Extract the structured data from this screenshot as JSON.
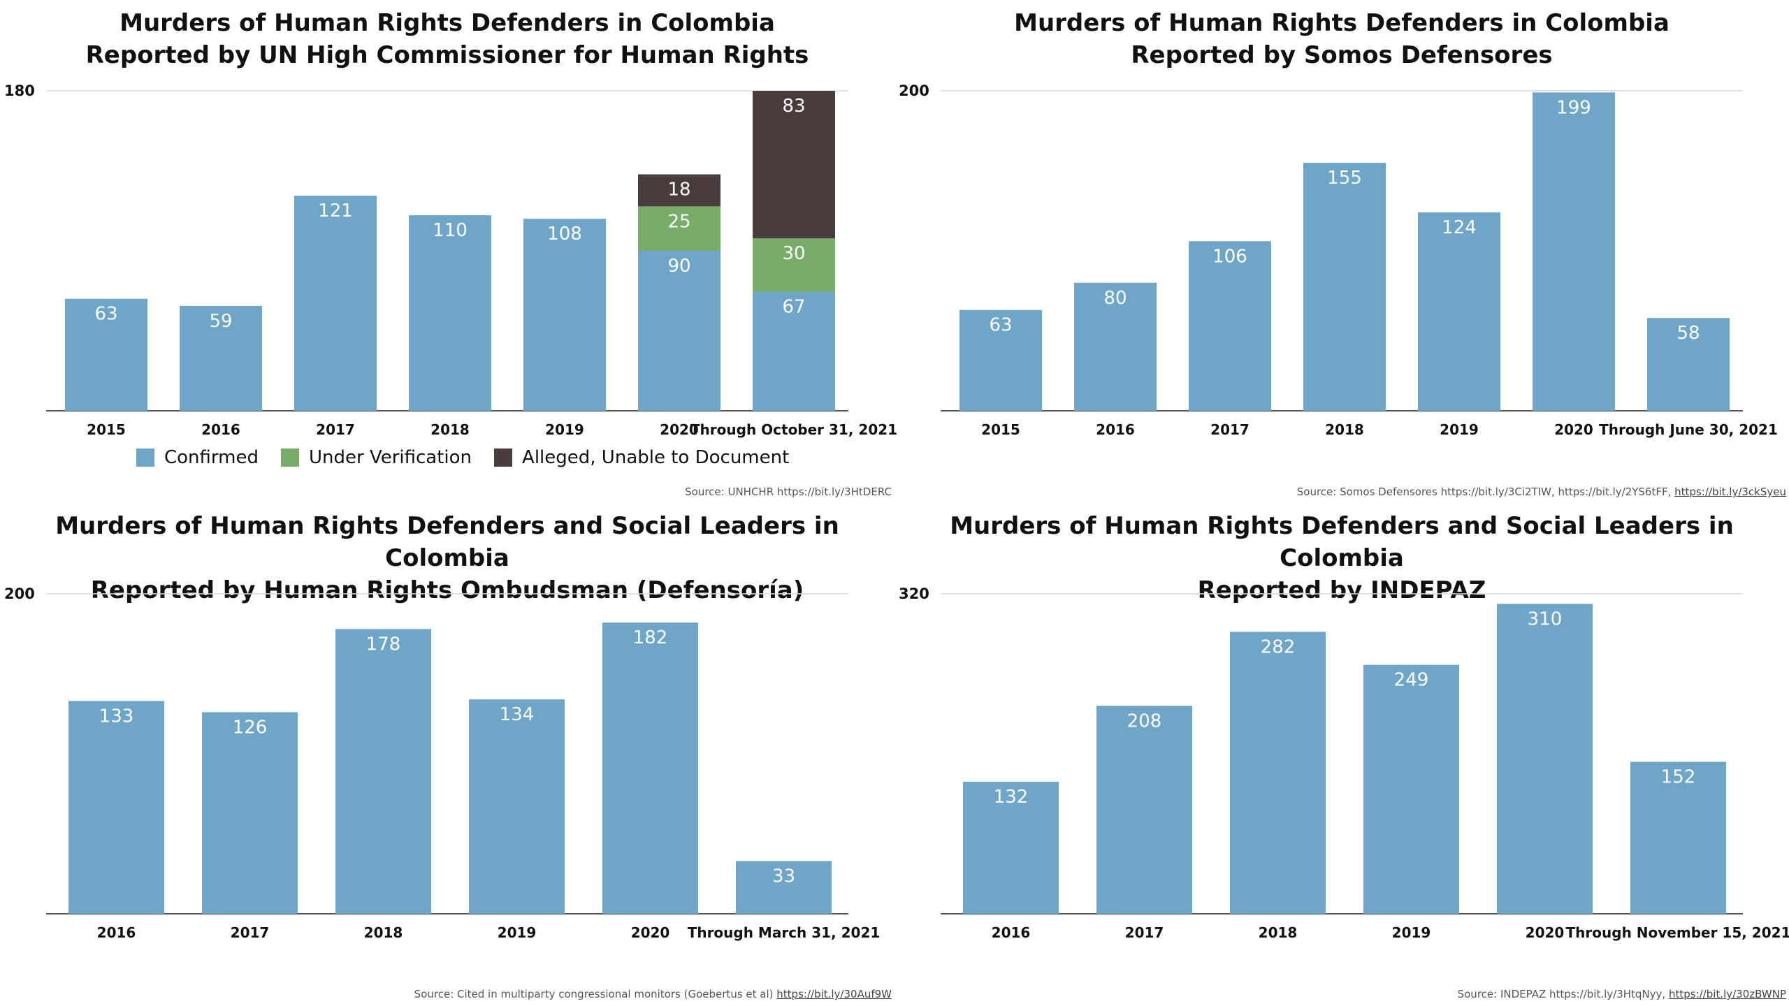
{
  "colors": {
    "confirmed": "#6fa6c7",
    "under_verification": "#77ad68",
    "alleged": "#483c3c",
    "gridline": "#d9d9d9",
    "axis": "#555555"
  },
  "chart_data": [
    {
      "type": "bar",
      "stacked": true,
      "title_line1": "Murders of Human Rights Defenders in Colombia",
      "title_line2": "Reported by UN High Commissioner for Human Rights",
      "categories": [
        "2015",
        "2016",
        "2017",
        "2018",
        "2019",
        "2020",
        "Through October 31, 2021"
      ],
      "series": [
        {
          "name": "Confirmed",
          "color": "#6fa6c7",
          "values": [
            63,
            59,
            121,
            110,
            108,
            90,
            67
          ]
        },
        {
          "name": "Under Verification",
          "color": "#77ad68",
          "values": [
            0,
            0,
            0,
            0,
            0,
            25,
            30
          ]
        },
        {
          "name": "Alleged, Unable to Document",
          "color": "#483c3c",
          "values": [
            0,
            0,
            0,
            0,
            0,
            18,
            83
          ]
        }
      ],
      "ylim": [
        0,
        180
      ],
      "y_tick_label": "180",
      "legend_placement": "bottom",
      "source_text": "Source: UNHCHR https://bit.ly/3HtDERC"
    },
    {
      "type": "bar",
      "title_line1": "Murders of Human Rights Defenders in Colombia",
      "title_line2": "Reported by Somos Defensores",
      "categories": [
        "2015",
        "2016",
        "2017",
        "2018",
        "2019",
        "2020",
        "Through June 30, 2021"
      ],
      "values": [
        63,
        80,
        106,
        155,
        124,
        199,
        58
      ],
      "ylim": [
        0,
        200
      ],
      "y_tick_label": "200",
      "source_text": "Source: Somos Defensores https://bit.ly/3Ci2TIW, https://bit.ly/2YS6tFF,",
      "source_link": "https://bit.ly/3ckSyeu"
    },
    {
      "type": "bar",
      "title_line1": "Murders of Human Rights Defenders and Social Leaders in Colombia",
      "title_line2": "Reported by Human Rights Ombudsman (Defensoría)",
      "categories": [
        "2016",
        "2017",
        "2018",
        "2019",
        "2020",
        "Through March 31, 2021"
      ],
      "values": [
        133,
        126,
        178,
        134,
        182,
        33
      ],
      "ylim": [
        0,
        200
      ],
      "y_tick_label": "200",
      "source_text": "Source: Cited in multiparty congressional monitors (Goebertus et al)",
      "source_link": "https://bit.ly/30Auf9W"
    },
    {
      "type": "bar",
      "title_line1": "Murders of Human Rights Defenders and Social Leaders in Colombia",
      "title_line2": "Reported by INDEPAZ",
      "categories": [
        "2016",
        "2017",
        "2018",
        "2019",
        "2020",
        "Through November 15, 2021"
      ],
      "values": [
        132,
        208,
        282,
        249,
        310,
        152
      ],
      "ylim": [
        0,
        320
      ],
      "y_tick_label": "320",
      "source_text": "Source: INDEPAZ https://bit.ly/3HtqNyy,",
      "source_link": "https://bit.ly/30zBWNP"
    }
  ]
}
